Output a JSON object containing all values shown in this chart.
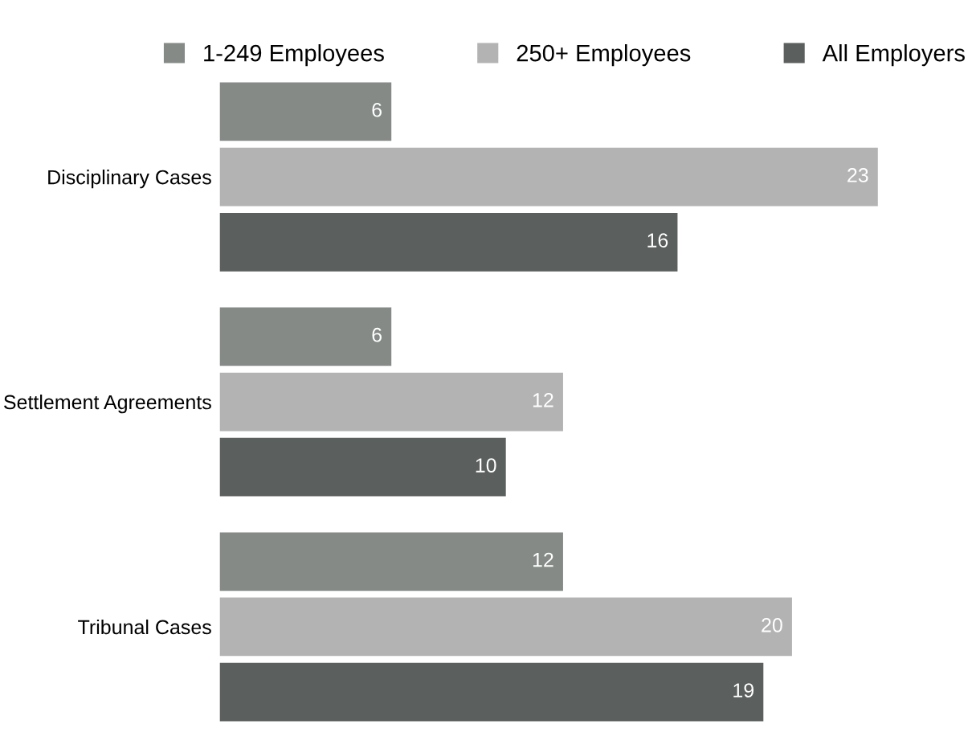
{
  "chart_data": {
    "type": "bar",
    "orientation": "horizontal",
    "categories": [
      "Disciplinary Cases",
      "Settlement Agreements",
      "Tribunal Cases"
    ],
    "series": [
      {
        "name": "1-249 Employees",
        "color": "#858a87",
        "values": [
          6,
          6,
          12
        ]
      },
      {
        "name": "250+ Employees",
        "color": "#b3b3b3",
        "values": [
          23,
          12,
          20
        ]
      },
      {
        "name": "All Employers",
        "color": "#5b5f5d",
        "values": [
          16,
          10,
          19
        ]
      }
    ],
    "data_labels": true,
    "legend": "top",
    "grid": false
  }
}
